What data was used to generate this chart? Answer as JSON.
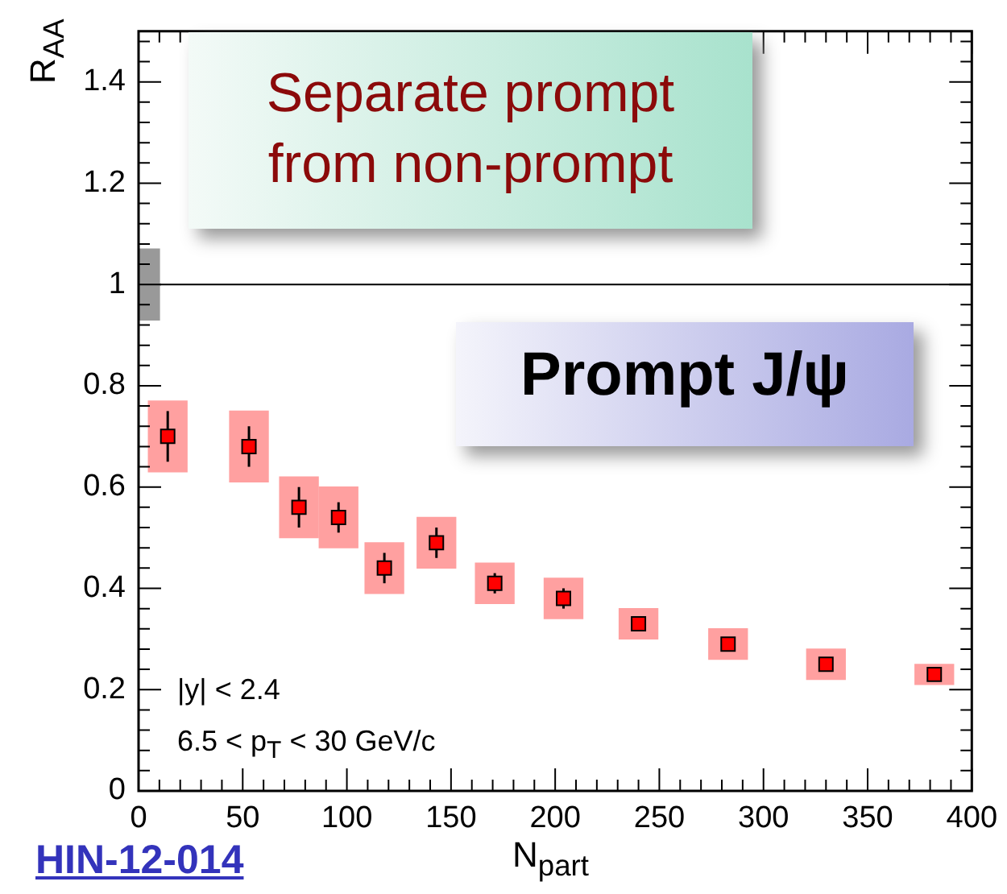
{
  "chart_data": {
    "type": "scatter",
    "xlabel": "N$_{part}$",
    "ylabel": "R$_{AA}$",
    "xlim": [
      0,
      400
    ],
    "xticks": [
      0,
      50,
      100,
      150,
      200,
      250,
      300,
      350,
      400
    ],
    "ylim": [
      0,
      1.5
    ],
    "yticks": [
      0,
      0.2,
      0.4,
      0.6,
      0.8,
      1,
      1.2,
      1.4
    ],
    "grid": false,
    "legend": false,
    "marker": "square",
    "series": [
      {
        "type": "bar",
        "color": "#ffa0a0",
        "x": [
          14,
          53,
          77,
          96,
          118,
          143,
          171,
          204,
          240,
          283,
          330,
          382
        ],
        "base": [
          0.63,
          0.61,
          0.5,
          0.48,
          0.39,
          0.44,
          0.37,
          0.34,
          0.3,
          0.26,
          0.22,
          0.21
        ],
        "values": [
          0.14,
          0.14,
          0.12,
          0.12,
          0.1,
          0.1,
          0.08,
          0.08,
          0.06,
          0.06,
          0.06,
          0.04
        ]
      },
      {
        "type": "bar",
        "color": "#999999",
        "x": [
          5
        ],
        "base": [
          0.93
        ],
        "values": [
          0.14
        ]
      },
      {
        "color": "#ff0000",
        "x": [
          14,
          53,
          77,
          96,
          118,
          143,
          171,
          204,
          240,
          283,
          330,
          382
        ],
        "values": [
          0.7,
          0.68,
          0.56,
          0.54,
          0.44,
          0.49,
          0.41,
          0.38,
          0.33,
          0.29,
          0.25,
          0.23
        ],
        "errors": [
          0.05,
          0.04,
          0.04,
          0.03,
          0.03,
          0.03,
          0.02,
          0.02,
          0.01,
          0.01,
          0.01,
          0.01
        ]
      }
    ],
    "ref_lines": [
      {
        "axis": "y",
        "value": 1,
        "color": "#000000"
      }
    ],
    "annotations": [
      "Separate prompt from non-prompt",
      "Prompt J/ψ",
      "|y| < 2.4",
      "6.5 < p$_{T}$ < 30 GeV/c",
      "HIN-12-014"
    ]
  }
}
